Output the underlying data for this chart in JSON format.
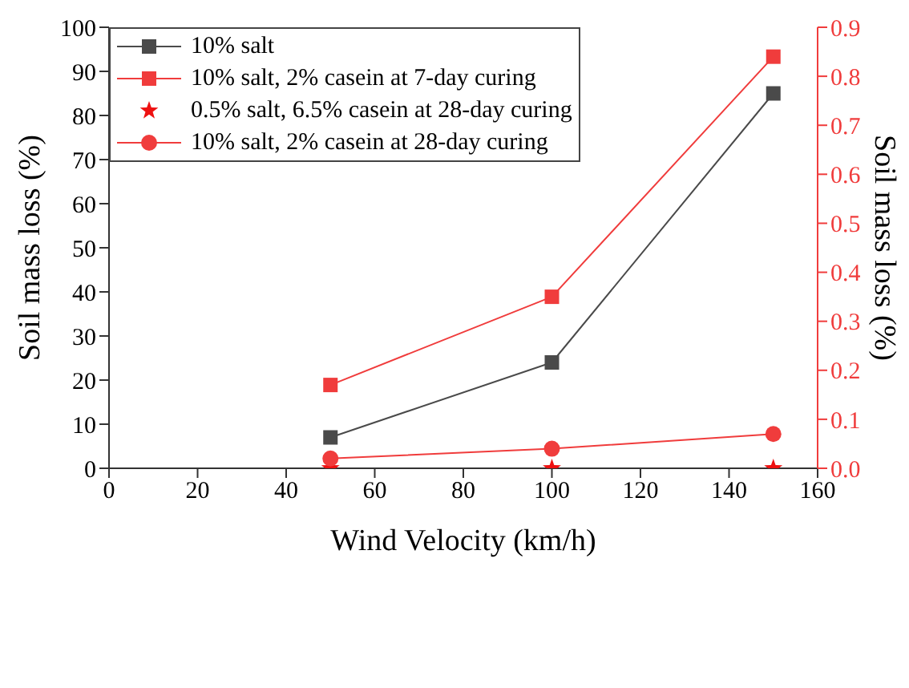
{
  "chart_data": {
    "type": "line",
    "xlabel": "Wind Velocity (km/h)",
    "ylabel": "Soil mass loss (%)",
    "y2label": "Soil mass loss (%)",
    "x": [
      50,
      100,
      150
    ],
    "series": [
      {
        "name": "10% salt",
        "color": "#4a4a4a",
        "marker": "square",
        "values": [
          7,
          24,
          85
        ]
      },
      {
        "name": "10% salt, 2% casein at 7-day curing",
        "color": "#f03c3c",
        "marker": "square",
        "axis": "y2",
        "values": [
          0.17,
          0.35,
          0.84
        ]
      },
      {
        "name": "0.5% salt, 6.5% casein at  28-day curing",
        "color": "#ee1111",
        "type": "scatter",
        "marker": "star",
        "axis": "y2",
        "values": [
          0,
          0,
          0
        ]
      },
      {
        "name": "10% salt, 2% casein at 28-day curing",
        "color": "#f03c3c",
        "marker": "circle",
        "axis": "y2",
        "values": [
          0.02,
          0.04,
          0.07
        ]
      }
    ],
    "xlim": [
      0,
      160
    ],
    "xticks": [
      0,
      20,
      40,
      60,
      80,
      100,
      120,
      140,
      160
    ],
    "ylim": [
      0,
      100
    ],
    "yticks": [
      0,
      10,
      20,
      30,
      40,
      50,
      60,
      70,
      80,
      90,
      100
    ],
    "y2lim": [
      0,
      0.9
    ],
    "y2ticks": [
      {
        "value": 0,
        "label": "0.0"
      },
      0.1,
      0.2,
      0.3,
      0.4,
      0.5,
      0.6,
      0.7,
      0.8,
      0.9
    ],
    "grid": false,
    "legend": "top left",
    "line_style": "solid"
  }
}
